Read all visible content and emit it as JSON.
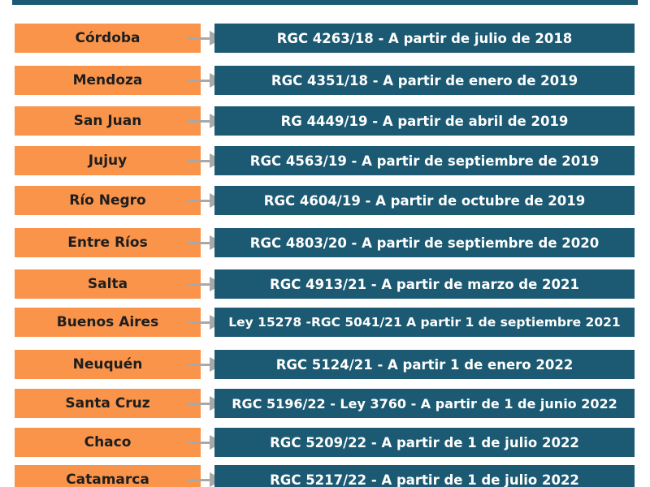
{
  "rows": [
    {
      "province": "Córdoba",
      "regulation": "RGC 4263/18 - A partir de julio de 2018"
    },
    {
      "province": "Mendoza",
      "regulation": "RGC 4351/18 - A partir de enero de 2019"
    },
    {
      "province": "San Juan",
      "regulation": "RG 4449/19 - A partir de abril de 2019"
    },
    {
      "province": "Jujuy",
      "regulation": "RGC 4563/19 - A partir de septiembre de 2019"
    },
    {
      "province": "Río Negro",
      "regulation": "RGC 4604/19 - A partir de octubre de 2019"
    },
    {
      "province": "Entre Ríos",
      "regulation": "RGC 4803/20 - A partir de septiembre de 2020"
    },
    {
      "province": "Salta",
      "regulation": "RGC 4913/21 - A partir de marzo de 2021"
    },
    {
      "province": "Buenos Aires",
      "regulation": "Ley 15278 -RGC 5041/21 A partir 1 de septiembre 2021"
    },
    {
      "province": "Neuquén",
      "regulation": "RGC 5124/21 - A partir 1 de enero 2022"
    },
    {
      "province": "Santa Cruz",
      "regulation": "RGC 5196/22 - Ley 3760 - A partir de 1 de junio 2022"
    },
    {
      "province": "Chaco",
      "regulation": "RGC 5209/22 - A partir de 1 de julio 2022"
    },
    {
      "province": "Catamarca",
      "regulation": "RGC 5217/22 - A partir de 1 de julio 2022"
    }
  ],
  "colors": {
    "province_bg": "#f9944a",
    "regulation_bg": "#1b5a72",
    "arrow": "#a8a8a8"
  }
}
